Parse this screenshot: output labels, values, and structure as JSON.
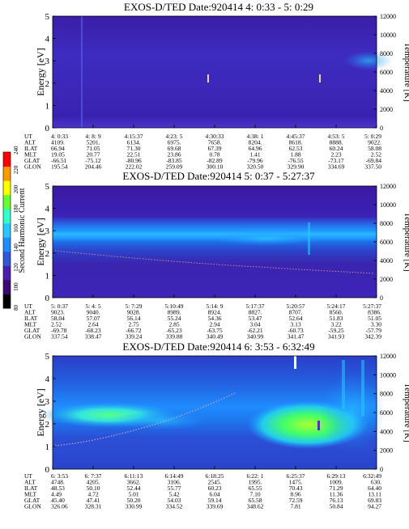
{
  "colorbar": {
    "label": "Second Harmonic Current",
    "ticks": [
      "80",
      "100",
      "120",
      "140",
      "160",
      "180",
      "200",
      "220",
      "240"
    ],
    "colors": [
      "#000000",
      "#3a0a6e",
      "#4a1fae",
      "#3355dd",
      "#1f8cff",
      "#27c8ff",
      "#33ffcc",
      "#66ff33",
      "#ffff00",
      "#ff9900",
      "#ff0000"
    ]
  },
  "panel_axes": {
    "y_label_left": "Energy [eV]",
    "y_label_right": "Temperature [K]",
    "row_labels": [
      "UT",
      "ALT",
      "ILAT",
      "MLT",
      "GLAT",
      "GLON"
    ]
  },
  "chart_data": [
    {
      "type": "heatmap",
      "title": "EXOS-D/TED   Date:920414  4: 0:33 - 5: 0:29",
      "ylim": [
        0,
        5
      ],
      "ylim_right": [
        0,
        12000
      ],
      "yticks": [
        "0",
        "1",
        "2",
        "3",
        "4",
        "5"
      ],
      "yticks_right": [
        "0",
        "2000",
        "4000",
        "6000",
        "8000",
        "10000",
        "12000"
      ],
      "columns": [
        [
          "4: 0:33",
          "4109.",
          "66.94",
          "19.05",
          "-66.51",
          "195.54"
        ],
        [
          "4: 8: 9",
          "5201.",
          "71.05",
          "20.77",
          "-75.12",
          "204.46"
        ],
        [
          "4:15:37",
          "6134.",
          "71.30",
          "22.51",
          "-80.96",
          "222.02"
        ],
        [
          "4:23: 5",
          "6975.",
          "69.68",
          "23.86",
          "-83.85",
          "259.09"
        ],
        [
          "4:30:33",
          "7658.",
          "67.39",
          "0.78",
          "-82.89",
          "300.10"
        ],
        [
          "4:38: 1",
          "8204.",
          "64.96",
          "1.41",
          "-79.96",
          "320.50"
        ],
        [
          "4:45:37",
          "8618.",
          "62.53",
          "1.88",
          "-76.55",
          "329.90"
        ],
        [
          "4:53: 5",
          "8888.",
          "60.24",
          "2.23",
          "-73.17",
          "334.69"
        ],
        [
          "5: 0:29",
          "9022.",
          "58.08",
          "2.52",
          "-69.84",
          "337.50"
        ]
      ]
    },
    {
      "type": "heatmap",
      "title": "EXOS-D/TED   Date:920414  5: 0:37 - 5:27:37",
      "ylim": [
        0,
        5
      ],
      "ylim_right": [
        0,
        12000
      ],
      "yticks": [
        "0",
        "1",
        "2",
        "3",
        "4",
        "5"
      ],
      "yticks_right": [
        "0",
        "2000",
        "4000",
        "6000",
        "8000",
        "10000",
        "12000"
      ],
      "columns": [
        [
          "5: 0:37",
          "9023.",
          "58.04",
          "2.52",
          "-69.78",
          "337.54"
        ],
        [
          "5: 4: 5",
          "9040.",
          "57.07",
          "2.64",
          "-68.23",
          "338.47"
        ],
        [
          "5: 7:29",
          "9028.",
          "56.14",
          "2.75",
          "-66.72",
          "339.24"
        ],
        [
          "5:10:49",
          "8989.",
          "55.24",
          "2.85",
          "-65.23",
          "339.88"
        ],
        [
          "5:14: 9",
          "8924.",
          "54.36",
          "2.94",
          "-63.75",
          "340.49"
        ],
        [
          "5:17:37",
          "8827.",
          "53.47",
          "3.04",
          "-62.21",
          "340.99"
        ],
        [
          "5:20:57",
          "8707.",
          "52.64",
          "3.13",
          "-60.73",
          "341.47"
        ],
        [
          "5:24:17",
          "8560.",
          "51.83",
          "3.22",
          "-59.25",
          "341.93"
        ],
        [
          "5:27:37",
          "8386.",
          "51.05",
          "3.30",
          "-57.79",
          "342.39"
        ]
      ]
    },
    {
      "type": "heatmap",
      "title": "EXOS-D/TED   Date:920414  6: 3:53 - 6:32:49",
      "ylim": [
        0,
        5
      ],
      "ylim_right": [
        0,
        12000
      ],
      "yticks": [
        "0",
        "1",
        "2",
        "3",
        "4",
        "5"
      ],
      "yticks_right": [
        "0",
        "2000",
        "4000",
        "6000",
        "8000",
        "10000",
        "12000"
      ],
      "columns": [
        [
          "6: 3:53",
          "4748.",
          "48.53",
          "4.49",
          "45.40",
          "326.06"
        ],
        [
          "6: 7:37",
          "4205.",
          "50.10",
          "4.72",
          "47.41",
          "328.31"
        ],
        [
          "6:11:13",
          "3662.",
          "52.44",
          "5.01",
          "50.20",
          "330.99"
        ],
        [
          "6:14:49",
          "3106.",
          "55.77",
          "5.42",
          "54.03",
          "334.52"
        ],
        [
          "6:18:25",
          "2545.",
          "60.23",
          "6.04",
          "59.14",
          "339.69"
        ],
        [
          "6:22: 1",
          "1995.",
          "65.55",
          "7.10",
          "65.58",
          "348.62"
        ],
        [
          "6:25:37",
          "1475.",
          "70.43",
          "8.96",
          "72.59",
          "7.81"
        ],
        [
          "6:29:13",
          "1009.",
          "71.29",
          "11.36",
          "76.13",
          "50.84"
        ],
        [
          "6:32:49",
          "630.",
          "64.40",
          "13.11",
          "69.83",
          "94.27"
        ]
      ]
    }
  ]
}
